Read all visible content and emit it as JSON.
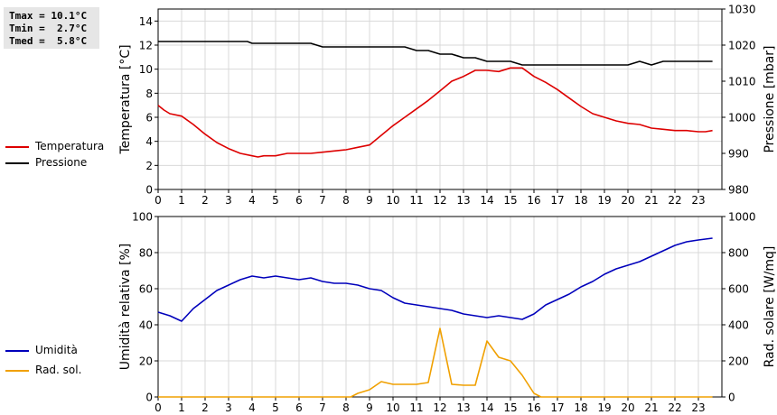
{
  "stats": {
    "line1": "Tmax = 10.1°C",
    "line2": "Tmin =  2.7°C",
    "line3": "Tmed =  5.8°C"
  },
  "colors": {
    "temperatura": "#dd0000",
    "pressione": "#000000",
    "umidita": "#0000bb",
    "radiazione": "#f0a000",
    "grid": "#d9d9d9"
  },
  "chart_data": [
    {
      "type": "line",
      "x_ticks": [
        "0",
        "1",
        "2",
        "3",
        "4",
        "5",
        "6",
        "7",
        "8",
        "9",
        "10",
        "11",
        "12",
        "13",
        "14",
        "15",
        "16",
        "17",
        "18",
        "19",
        "20",
        "21",
        "22",
        "23"
      ],
      "xlim": [
        0,
        24
      ],
      "ylabel_left": "Temperatura [°C]",
      "ylabel_right": "Pressione [mbar]",
      "ylim_left": [
        0,
        15
      ],
      "ylim_right": [
        980,
        1030
      ],
      "y_ticks_left": [
        "0",
        "2",
        "4",
        "6",
        "8",
        "10",
        "12",
        "14"
      ],
      "y_ticks_right": [
        "980",
        "990",
        "1000",
        "1010",
        "1020",
        "1030"
      ],
      "grid": true,
      "legend_position": "left",
      "series": [
        {
          "name": "Temperatura",
          "axis": "left",
          "x": [
            0,
            0.25,
            0.5,
            1,
            1.5,
            2,
            2.5,
            3,
            3.5,
            4,
            4.25,
            4.5,
            5,
            5.5,
            6,
            6.5,
            7,
            7.5,
            8,
            8.5,
            9,
            9.5,
            10,
            10.5,
            11,
            11.5,
            12,
            12.5,
            13,
            13.5,
            14,
            14.5,
            15,
            15.5,
            16,
            16.5,
            17,
            17.5,
            18,
            18.5,
            19,
            19.5,
            20,
            20.5,
            21,
            21.5,
            22,
            22.5,
            23,
            23.3,
            23.6
          ],
          "y": [
            7.0,
            6.6,
            6.3,
            6.1,
            5.4,
            4.6,
            3.9,
            3.4,
            3.0,
            2.8,
            2.7,
            2.8,
            2.8,
            3.0,
            3.0,
            3.0,
            3.1,
            3.2,
            3.3,
            3.5,
            3.7,
            4.5,
            5.3,
            6.0,
            6.7,
            7.4,
            8.2,
            9.0,
            9.4,
            9.9,
            9.9,
            9.8,
            10.1,
            10.1,
            9.4,
            8.9,
            8.3,
            7.6,
            6.9,
            6.3,
            6.0,
            5.7,
            5.5,
            5.4,
            5.1,
            5.0,
            4.9,
            4.9,
            4.8,
            4.8,
            4.9
          ]
        },
        {
          "name": "Pressione",
          "axis": "right",
          "x": [
            0,
            0.5,
            1,
            1.5,
            2,
            2.5,
            3,
            3.5,
            3.8,
            4,
            4.5,
            5,
            5.5,
            6,
            6.5,
            7,
            7.5,
            8,
            8.5,
            9,
            9.5,
            10,
            10.5,
            11,
            11.5,
            12,
            12.5,
            13,
            13.5,
            14,
            14.5,
            15,
            15.5,
            16,
            16.5,
            17,
            17.5,
            18,
            18.5,
            19,
            19.5,
            20,
            20.5,
            21,
            21.5,
            22,
            22.5,
            23,
            23.6
          ],
          "y": [
            1021,
            1021,
            1021,
            1021,
            1021,
            1021,
            1021,
            1021,
            1021,
            1020.5,
            1020.5,
            1020.5,
            1020.5,
            1020.5,
            1020.5,
            1019.5,
            1019.5,
            1019.5,
            1019.5,
            1019.5,
            1019.5,
            1019.5,
            1019.5,
            1018.5,
            1018.5,
            1017.5,
            1017.5,
            1016.5,
            1016.5,
            1015.5,
            1015.5,
            1015.5,
            1014.5,
            1014.5,
            1014.5,
            1014.5,
            1014.5,
            1014.5,
            1014.5,
            1014.5,
            1014.5,
            1014.5,
            1015.5,
            1014.5,
            1015.5,
            1015.5,
            1015.5,
            1015.5,
            1015.5
          ]
        }
      ]
    },
    {
      "type": "line",
      "x_ticks": [
        "0",
        "1",
        "2",
        "3",
        "4",
        "5",
        "6",
        "7",
        "8",
        "9",
        "10",
        "11",
        "12",
        "13",
        "14",
        "15",
        "16",
        "17",
        "18",
        "19",
        "20",
        "21",
        "22",
        "23"
      ],
      "xlim": [
        0,
        24
      ],
      "ylabel_left": "Umidità relativa [%]",
      "ylabel_right": "Rad. solare [W/mq]",
      "ylim_left": [
        0,
        100
      ],
      "ylim_right": [
        0,
        1000
      ],
      "y_ticks_left": [
        "0",
        "20",
        "40",
        "60",
        "80",
        "100"
      ],
      "y_ticks_right": [
        "0",
        "200",
        "400",
        "600",
        "800",
        "1000"
      ],
      "grid": true,
      "legend_position": "left",
      "series": [
        {
          "name": "Umidità",
          "axis": "left",
          "x": [
            0,
            0.5,
            1,
            1.5,
            2,
            2.5,
            3,
            3.5,
            4,
            4.5,
            5,
            5.5,
            6,
            6.5,
            7,
            7.5,
            8,
            8.5,
            9,
            9.5,
            10,
            10.5,
            11,
            11.5,
            12,
            12.5,
            13,
            13.5,
            14,
            14.5,
            15,
            15.5,
            16,
            16.5,
            17,
            17.5,
            18,
            18.5,
            19,
            19.5,
            20,
            20.5,
            21,
            21.5,
            22,
            22.5,
            23,
            23.6
          ],
          "y": [
            47,
            45,
            42,
            49,
            54,
            59,
            62,
            65,
            67,
            66,
            67,
            66,
            65,
            66,
            64,
            63,
            63,
            62,
            60,
            59,
            55,
            52,
            51,
            50,
            49,
            48,
            46,
            45,
            44,
            45,
            44,
            43,
            46,
            51,
            54,
            57,
            61,
            64,
            68,
            71,
            73,
            75,
            78,
            81,
            84,
            86,
            87,
            88
          ]
        },
        {
          "name": "Rad. sol.",
          "axis": "right",
          "x": [
            0,
            1,
            2,
            3,
            4,
            5,
            6,
            7,
            8,
            8.2,
            8.5,
            9,
            9.5,
            10,
            10.5,
            11,
            11.5,
            12,
            12.5,
            13,
            13.5,
            14,
            14.5,
            15,
            15.5,
            16,
            16.3,
            16.6,
            17,
            18,
            19,
            20,
            21,
            22,
            23,
            23.6
          ],
          "y": [
            0,
            0,
            0,
            0,
            0,
            0,
            0,
            0,
            0,
            0,
            20,
            40,
            85,
            70,
            70,
            70,
            80,
            380,
            70,
            65,
            65,
            310,
            220,
            200,
            120,
            20,
            0,
            0,
            0,
            0,
            0,
            0,
            0,
            0,
            0,
            0
          ]
        }
      ]
    }
  ]
}
